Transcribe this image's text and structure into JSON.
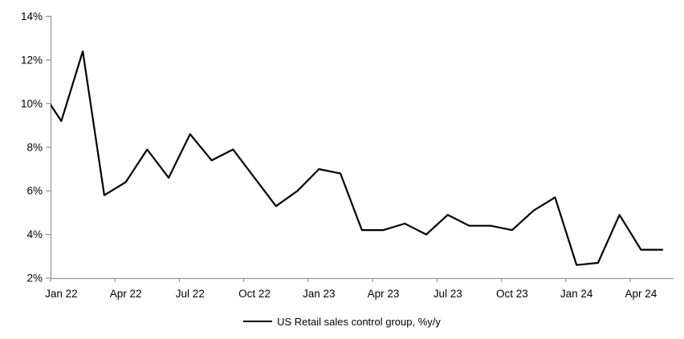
{
  "chart_data": {
    "type": "line",
    "title": "",
    "xlabel": "",
    "ylabel": "",
    "grid": false,
    "legend_position": "bottom-center",
    "line_color": "#000000",
    "axis_color": "#999999",
    "text_color": "#000000",
    "ylim": [
      2,
      14
    ],
    "y_tick_step": 2,
    "y_tick_labels": [
      "2%",
      "4%",
      "6%",
      "8%",
      "10%",
      "12%",
      "14%"
    ],
    "x_tick_labels": [
      "Jan 22",
      "Apr 22",
      "Jul 22",
      "Oct 22",
      "Jan 23",
      "Apr 23",
      "Jul 23",
      "Oct 23",
      "Jan 24",
      "Apr 24"
    ],
    "series": [
      {
        "name": "US Retail sales control group, %y/y",
        "color": "#000000",
        "months": [
          "Dec 21",
          "Jan 22",
          "Feb 22",
          "Mar 22",
          "Apr 22",
          "May 22",
          "Jun 22",
          "Jul 22",
          "Aug 22",
          "Sep 22",
          "Oct 22",
          "Nov 22",
          "Dec 22",
          "Jan 23",
          "Feb 23",
          "Mar 23",
          "Apr 23",
          "May 23",
          "Jun 23",
          "Jul 23",
          "Aug 23",
          "Sep 23",
          "Oct 23",
          "Nov 23",
          "Dec 23",
          "Jan 24",
          "Feb 24",
          "Mar 24",
          "Apr 24",
          "May 24"
        ],
        "values": [
          10.7,
          9.2,
          12.4,
          5.8,
          6.4,
          7.9,
          6.6,
          8.6,
          7.4,
          7.9,
          6.6,
          5.3,
          6.0,
          7.0,
          6.8,
          4.2,
          4.2,
          4.5,
          4.0,
          4.9,
          4.4,
          4.4,
          4.2,
          5.1,
          5.7,
          2.6,
          2.7,
          4.9,
          3.3,
          3.3
        ]
      }
    ]
  },
  "legend": {
    "label": "US Retail sales control group, %y/y"
  }
}
